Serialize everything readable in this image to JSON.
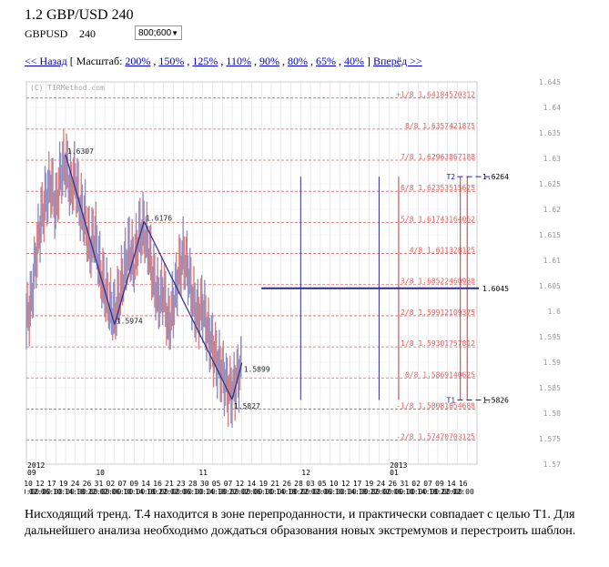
{
  "header": {
    "title": "1.2 GBP/USD 240",
    "symbol": "GBPUSD",
    "timeframe": "240",
    "size_select": "800;600"
  },
  "nav": {
    "back": "<< Назад",
    "scale_open": "[ Масштаб:",
    "zooms": [
      "200%",
      "150%",
      "125%",
      "110%",
      "90%",
      "80%",
      "65%",
      "40%"
    ],
    "scale_close": "]",
    "forward": "Вперёд >>"
  },
  "chart_data": {
    "type": "line",
    "watermark": "(C) TIRMethod.com",
    "ylim": [
      1.57,
      1.645
    ],
    "y_ticks": [
      1.645,
      1.64,
      1.635,
      1.63,
      1.625,
      1.62,
      1.615,
      1.61,
      1.605,
      1.6,
      1.595,
      1.59,
      1.585,
      1.58,
      1.575,
      1.57
    ],
    "y_tick_labels": [
      "1.645",
      "1.64",
      "1.635",
      "1.63",
      "1.625",
      "1.62",
      "1.615",
      "1.61",
      "1.605",
      "1.6",
      "1.595",
      "1.59",
      "1.585",
      "1.58",
      "1.575",
      "1.57"
    ],
    "murray_levels": [
      {
        "label": "+1/8 1.64184570312",
        "value": 1.64184570312
      },
      {
        "label": "8/8 1.6357421875",
        "value": 1.6357421875
      },
      {
        "label": "7/8 1.62963867188",
        "value": 1.62963867188
      },
      {
        "label": "6/8 1.62353515625",
        "value": 1.62353515625
      },
      {
        "label": "5/8 1.61743164062",
        "value": 1.61743164062
      },
      {
        "label": "4/8 1.611328125",
        "value": 1.611328125
      },
      {
        "label": "3/8 1.60522460938",
        "value": 1.60522460938
      },
      {
        "label": "2/8 1.59912109375",
        "value": 1.59912109375
      },
      {
        "label": "1/8 1.59301757812",
        "value": 1.59301757812
      },
      {
        "label": "0/8 1.5869140625",
        "value": 1.5869140625
      },
      {
        "label": "-1/8 1.58081054688",
        "value": 1.58081054688
      },
      {
        "label": "-2/8 1.57470703125",
        "value": 1.57470703125
      }
    ],
    "targets": [
      {
        "name": "T2",
        "value": 1.6264,
        "label": "1.6264"
      },
      {
        "name": "T1",
        "value": 1.5826,
        "label": "1.5826"
      }
    ],
    "horizontal_level": {
      "value": 1.6045,
      "label": "1.6045",
      "x_from": 24,
      "x_to": 40
    },
    "pivots": [
      {
        "x": 4,
        "value": 1.6307,
        "label": "1.6307"
      },
      {
        "x": 9,
        "value": 1.5974,
        "label": "1.5974"
      },
      {
        "x": 12,
        "value": 1.6176,
        "label": "1.6176"
      },
      {
        "x": 21,
        "value": 1.5827,
        "label": "1.5827"
      },
      {
        "x": 22,
        "value": 1.5899,
        "label": "1.5899"
      }
    ],
    "price_series": [
      {
        "x": 0,
        "value": 1.598
      },
      {
        "x": 0.5,
        "value": 1.602
      },
      {
        "x": 1,
        "value": 1.611
      },
      {
        "x": 1.5,
        "value": 1.618
      },
      {
        "x": 2,
        "value": 1.622
      },
      {
        "x": 2.5,
        "value": 1.625
      },
      {
        "x": 3,
        "value": 1.62
      },
      {
        "x": 3.5,
        "value": 1.627
      },
      {
        "x": 4,
        "value": 1.629
      },
      {
        "x": 4.5,
        "value": 1.624
      },
      {
        "x": 5,
        "value": 1.626
      },
      {
        "x": 5.5,
        "value": 1.62
      },
      {
        "x": 6,
        "value": 1.618
      },
      {
        "x": 6.5,
        "value": 1.612
      },
      {
        "x": 7,
        "value": 1.615
      },
      {
        "x": 7.5,
        "value": 1.608
      },
      {
        "x": 8,
        "value": 1.604
      },
      {
        "x": 8.5,
        "value": 1.601
      },
      {
        "x": 9,
        "value": 1.599
      },
      {
        "x": 9.5,
        "value": 1.603
      },
      {
        "x": 10,
        "value": 1.608
      },
      {
        "x": 10.5,
        "value": 1.612
      },
      {
        "x": 11,
        "value": 1.609
      },
      {
        "x": 11.5,
        "value": 1.615
      },
      {
        "x": 12,
        "value": 1.616
      },
      {
        "x": 12.5,
        "value": 1.612
      },
      {
        "x": 13,
        "value": 1.606
      },
      {
        "x": 13.5,
        "value": 1.602
      },
      {
        "x": 14,
        "value": 1.604
      },
      {
        "x": 14.5,
        "value": 1.597
      },
      {
        "x": 15,
        "value": 1.601
      },
      {
        "x": 15.5,
        "value": 1.607
      },
      {
        "x": 16,
        "value": 1.611
      },
      {
        "x": 16.5,
        "value": 1.608
      },
      {
        "x": 17,
        "value": 1.602
      },
      {
        "x": 17.5,
        "value": 1.599
      },
      {
        "x": 18,
        "value": 1.601
      },
      {
        "x": 18.5,
        "value": 1.596
      },
      {
        "x": 19,
        "value": 1.593
      },
      {
        "x": 19.5,
        "value": 1.59
      },
      {
        "x": 20,
        "value": 1.588
      },
      {
        "x": 20.5,
        "value": 1.585
      },
      {
        "x": 21,
        "value": 1.584
      },
      {
        "x": 21.5,
        "value": 1.587
      },
      {
        "x": 22,
        "value": 1.589
      }
    ],
    "vertical_markers": [
      {
        "x": 28,
        "color": "#3030a0"
      },
      {
        "x": 36,
        "color": "#3030a0"
      },
      {
        "x": 38,
        "color": "#cc3333"
      },
      {
        "x": 45,
        "color": "#cc3333"
      }
    ],
    "x_ticks": [
      "10",
      "12",
      "17",
      "19",
      "24",
      "26",
      "31",
      "02",
      "07",
      "09",
      "14",
      "16",
      "21",
      "23",
      "28",
      "30",
      "05",
      "07",
      "12",
      "14",
      "19",
      "21",
      "26",
      "28",
      "03",
      "05",
      "10",
      "12",
      "17",
      "19",
      "24",
      "26",
      "31",
      "02",
      "07",
      "09",
      "14",
      "16"
    ],
    "x_time_labels": [
      "10:00",
      "02:00",
      "06:00",
      "10:00",
      "14:00",
      "18:00",
      "22:00",
      "02:00",
      "06:00",
      "10:00",
      "14:00",
      "18:00",
      "22:00",
      "02:00",
      "06:00",
      "10:00",
      "14:00",
      "18:00",
      "22:00",
      "02:00",
      "06:00",
      "10:00",
      "14:00",
      "18:00",
      "22:00",
      "02:00",
      "06:00",
      "10:00",
      "14:00",
      "18:00",
      "22:00",
      "02:00",
      "06:00",
      "10:00",
      "14:00",
      "18:00",
      "22:00",
      "02:00"
    ],
    "x_dates_line": [
      "09",
      "01",
      "02",
      "03",
      "04",
      "05",
      "06",
      "07",
      "08",
      "09",
      "10",
      "11",
      "12",
      "13",
      "14",
      "15",
      "16",
      "17",
      "18",
      "19",
      "20",
      "21",
      "22",
      "23",
      "24",
      "25",
      "26",
      "27",
      "28",
      "29",
      "30",
      "31",
      "01",
      "02",
      "03",
      "04",
      "05",
      "06"
    ],
    "x_date_ticks": [
      "10",
      "12",
      "17",
      "19",
      "24",
      "26",
      "31",
      "02",
      "07",
      "09",
      "14",
      "16",
      "21",
      "23",
      "28",
      "30",
      "05",
      "07",
      "12",
      "14",
      "19",
      "21",
      "26",
      "28",
      "03",
      "05",
      "10",
      "12",
      "17",
      "19",
      "24",
      "26",
      "31",
      "02",
      "07",
      "09",
      "14",
      "16"
    ],
    "period_labels": [
      {
        "x": 0,
        "label": "2012"
      },
      {
        "x": 0,
        "label": "09"
      },
      {
        "x": 7,
        "label": "10"
      },
      {
        "x": 17.5,
        "label": "11"
      },
      {
        "x": 28,
        "label": "12"
      },
      {
        "x": 37,
        "label": "2013"
      },
      {
        "x": 37,
        "label": "01"
      }
    ]
  },
  "caption": "Нисходящий тренд. Т.4 находится в зоне перепроданности, и практически совпадает с целью Т1. Для дальнейшего анализа необходимо дождаться образования новых экстремумов и перестроить шаблон.",
  "colors": {
    "accent": "#0000cc",
    "murray": "#e06060",
    "trend": "#2a2a8a",
    "candles": "#e08080",
    "grid": "#dddddd"
  }
}
